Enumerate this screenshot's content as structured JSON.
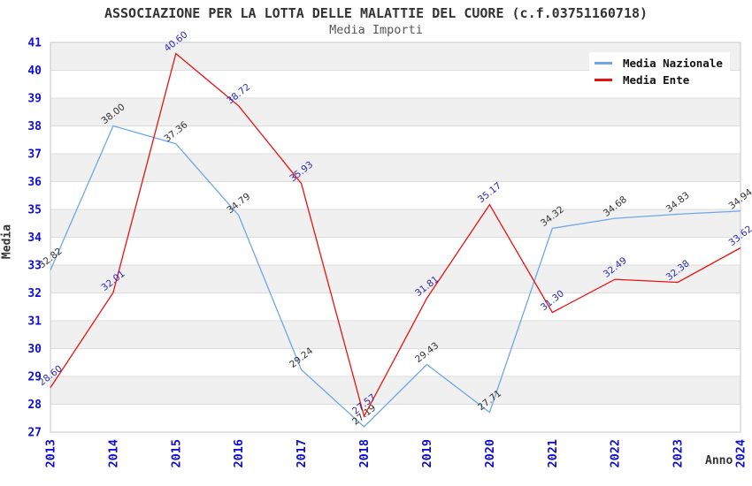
{
  "title": "ASSOCIAZIONE PER LA LOTTA DELLE MALATTIE DEL CUORE (c.f.03751160718)",
  "subtitle": "Media Importi",
  "legend": {
    "items": [
      {
        "label": "Media Nazionale",
        "color": "#6ea6e8"
      },
      {
        "label": "Media Ente",
        "color": "#e81212"
      }
    ]
  },
  "chart_data": {
    "type": "line",
    "title": "ASSOCIAZIONE PER LA LOTTA DELLE MALATTIE DEL CUORE (c.f.03751160718)",
    "subtitle": "Media Importi",
    "xlabel": "Anno",
    "ylabel": "Media",
    "categories": [
      "2013",
      "2014",
      "2015",
      "2016",
      "2017",
      "2018",
      "2019",
      "2020",
      "2021",
      "2022",
      "2023",
      "2024"
    ],
    "series": [
      {
        "name": "Media Nazionale",
        "color": "#6ea6e8",
        "label_color": "#333333",
        "values": [
          32.82,
          38.0,
          37.36,
          34.79,
          29.24,
          27.19,
          29.43,
          27.71,
          34.32,
          34.68,
          34.83,
          34.94
        ]
      },
      {
        "name": "Media Ente",
        "color": "#e81212",
        "label_color": "#2b2bb8",
        "values": [
          28.6,
          32.01,
          40.6,
          38.72,
          35.93,
          27.57,
          31.81,
          35.17,
          31.3,
          32.49,
          32.38,
          33.62
        ]
      }
    ],
    "ylim": [
      27,
      41
    ],
    "y_tick_step": 1,
    "grid": true,
    "band_colors": [
      "#f0f0f0",
      "#ffffff"
    ],
    "grid_color": "#dcdcdc",
    "border_color": "#c8c8c8",
    "tick_label_color": "#0f0fcc",
    "legend_position": "top-right"
  }
}
